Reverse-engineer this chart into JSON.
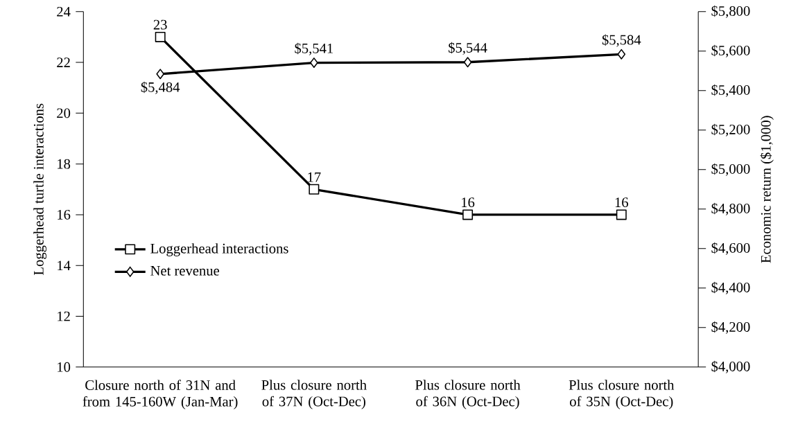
{
  "chart_data": {
    "type": "line",
    "categories": [
      "Closure north of 31N and from 145-160W (Jan-Mar)",
      "Plus closure north of 37N (Oct-Dec)",
      "Plus closure north of 36N (Oct-Dec)",
      "Plus closure north of 35N (Oct-Dec)"
    ],
    "ylabel": "Loggerhead turtle interactions",
    "y2label": "Economic return ($1,000)",
    "series": [
      {
        "name": "Loggerhead interactions",
        "color": "#000000",
        "marker": "square",
        "values": [
          23,
          17,
          16,
          16
        ],
        "value_labels": [
          "23",
          "17",
          "16",
          "16"
        ]
      },
      {
        "name": "Net revenue",
        "color": "#000000",
        "marker": "diamond",
        "axis": "y2",
        "values": [
          5484,
          5541,
          5544,
          5584
        ],
        "value_labels": [
          "$5,484",
          "$5,541",
          "$5,544",
          "$5,584"
        ]
      }
    ],
    "ylim": [
      10,
      24
    ],
    "yticks": [
      10,
      12,
      14,
      16,
      18,
      20,
      22,
      24
    ],
    "y2lim": [
      4000,
      5800
    ],
    "y2ticks": [
      {
        "value": 4000,
        "label": "$4,000"
      },
      {
        "value": 4200,
        "label": "$4,200"
      },
      {
        "value": 4400,
        "label": "$4,400"
      },
      {
        "value": 4600,
        "label": "$4,600"
      },
      {
        "value": 4800,
        "label": "$4,800"
      },
      {
        "value": 5000,
        "label": "$5,000"
      },
      {
        "value": 5200,
        "label": "$5,200"
      },
      {
        "value": 5400,
        "label": "$5,400"
      },
      {
        "value": 5600,
        "label": "$5,600"
      },
      {
        "value": 5800,
        "label": "$5,800"
      }
    ],
    "legend": "left",
    "grid": false,
    "line_style": "solid"
  }
}
